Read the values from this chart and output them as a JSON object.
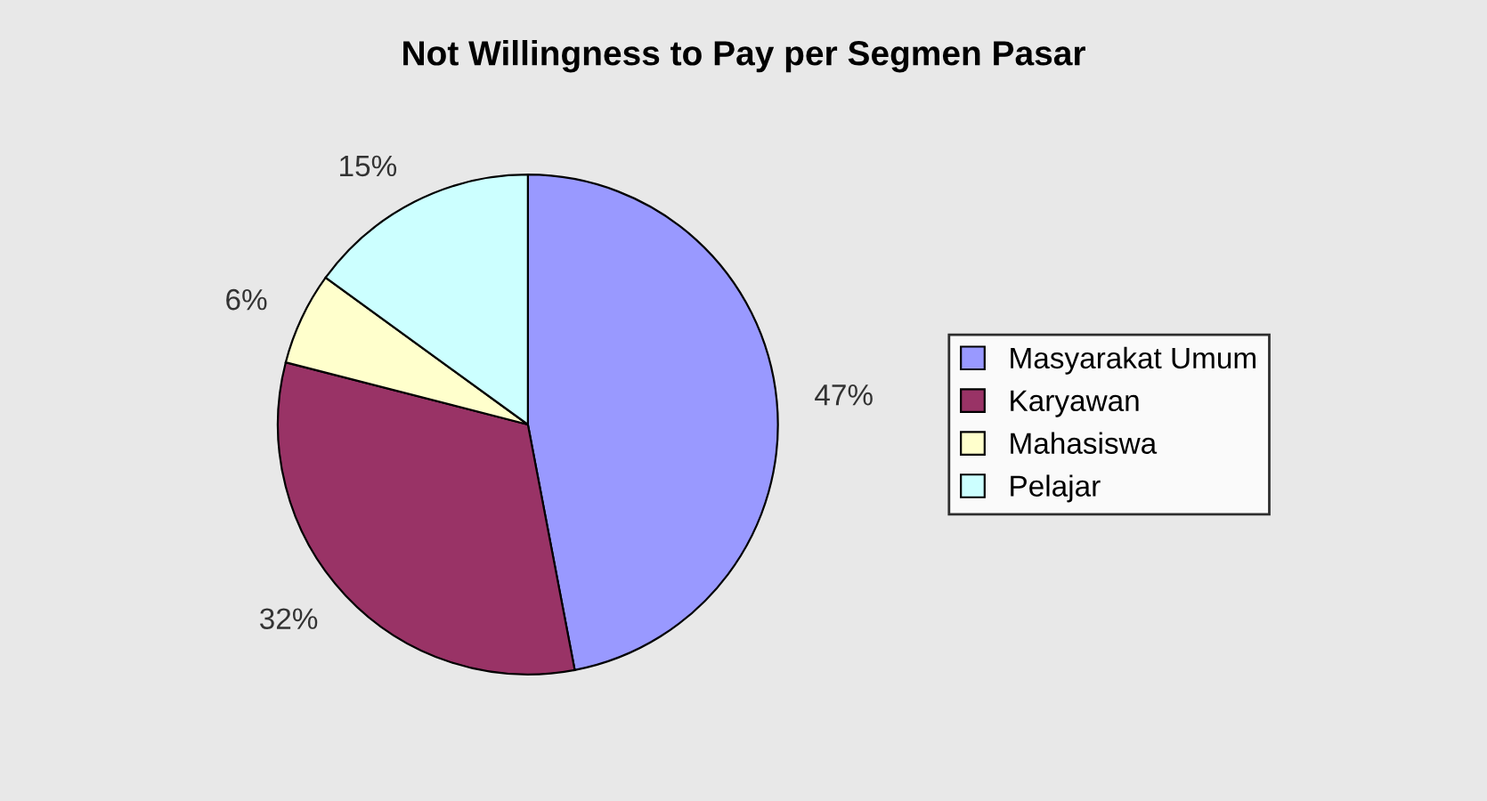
{
  "chart_data": {
    "type": "pie",
    "title": "Not Willingness to Pay per Segmen Pasar",
    "categories": [
      "Masyarakat Umum",
      "Karyawan",
      "Mahasiswa",
      "Pelajar"
    ],
    "values": [
      47,
      32,
      6,
      15
    ],
    "colors": [
      "#9999ff",
      "#993366",
      "#ffffcc",
      "#ccffff"
    ],
    "value_labels": [
      "47%",
      "32%",
      "6%",
      "15%"
    ],
    "legend": "right"
  }
}
